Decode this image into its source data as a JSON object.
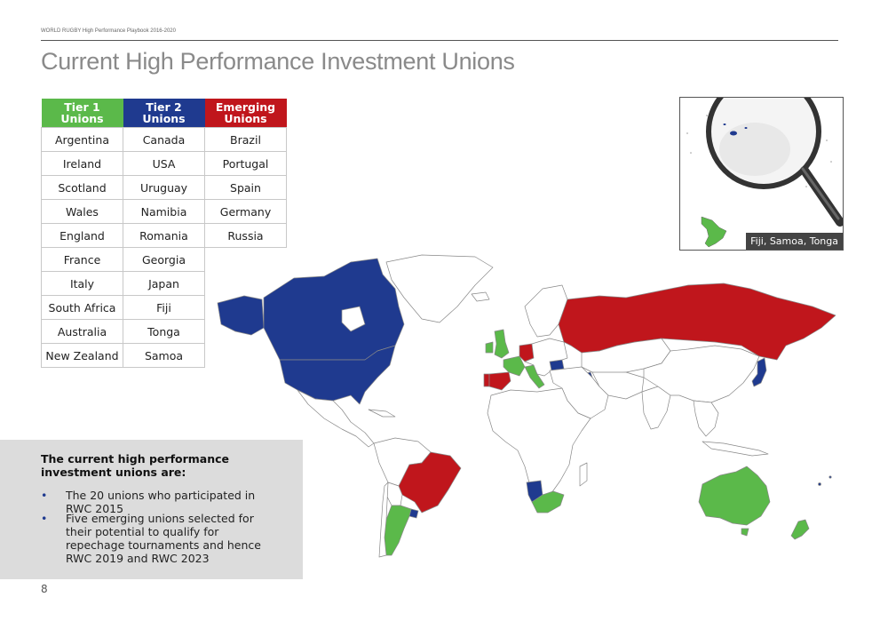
{
  "header": {
    "running_head": "WORLD RUGBY High Performance Playbook 2016-2020",
    "title": "Current High Performance Investment Unions"
  },
  "table": {
    "headers": {
      "tier1": "Tier 1 Unions",
      "tier2": "Tier 2 Unions",
      "emerging_line1": "Emerging",
      "emerging_line2": "Unions"
    },
    "tier1": [
      "Argentina",
      "Ireland",
      "Scotland",
      "Wales",
      "England",
      "France",
      "Italy",
      "South Africa",
      "Australia",
      "New Zealand"
    ],
    "tier2": [
      "Canada",
      "USA",
      "Uruguay",
      "Namibia",
      "Romania",
      "Georgia",
      "Japan",
      "Fiji",
      "Tonga",
      "Samoa"
    ],
    "emerging": [
      "Brazil",
      "Portugal",
      "Spain",
      "Germany",
      "Russia"
    ]
  },
  "colors": {
    "tier1": "#5bb94a",
    "tier2": "#1f3a8f",
    "emerging": "#c0161c",
    "land": "#ffffff",
    "border": "#888888"
  },
  "inset": {
    "caption": "Fiji, Samoa, Tonga",
    "icon": "magnifier-icon"
  },
  "info": {
    "heading": "The current high performance investment unions are:",
    "bullets": [
      "The 20 unions who participated in RWC 2015",
      "Five emerging unions selected for their potential to qualify for repechage tournaments and hence RWC 2019 and RWC 2023"
    ],
    "bullet_symbol": "•"
  },
  "page_number": "8"
}
